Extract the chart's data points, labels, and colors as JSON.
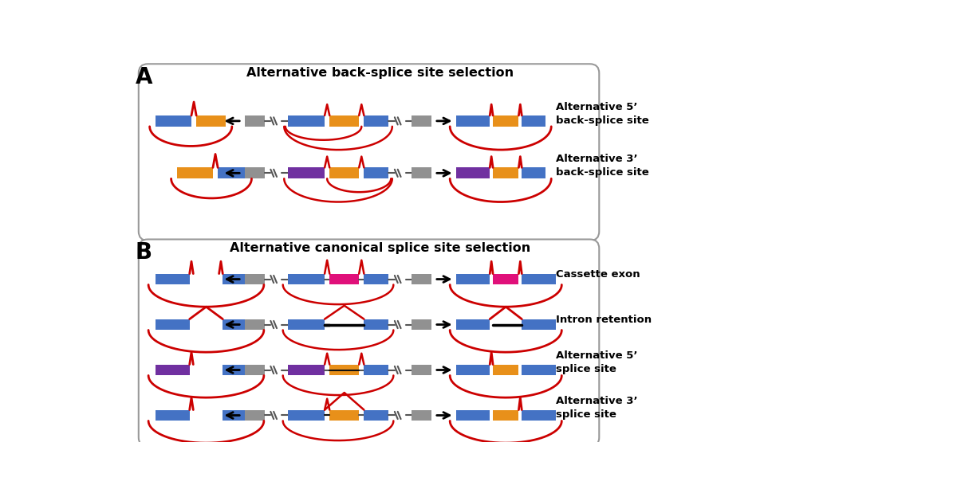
{
  "fig_width": 12.0,
  "fig_height": 6.24,
  "bg_color": "#ffffff",
  "title_A": "Alternative back-splice site selection",
  "title_B": "Alternative canonical splice site selection",
  "label_A": "A",
  "label_B": "B",
  "colors": {
    "blue": "#4472C4",
    "orange": "#E8901A",
    "purple": "#7030A0",
    "magenta": "#E0107A",
    "gray": "#919191",
    "red": "#CC0000",
    "black": "#000000",
    "white": "#ffffff",
    "box_bg": "#ffffff",
    "box_border": "#999999"
  },
  "labels": {
    "alt5_back": "Alternative 5’\nback-splice site",
    "alt3_back": "Alternative 3’\nback-splice site",
    "cassette": "Cassette exon",
    "intron": "Intron retention",
    "alt5_splice": "Alternative 5’\nsplice site",
    "alt3_splice": "Alternative 3’\nsplice site"
  }
}
